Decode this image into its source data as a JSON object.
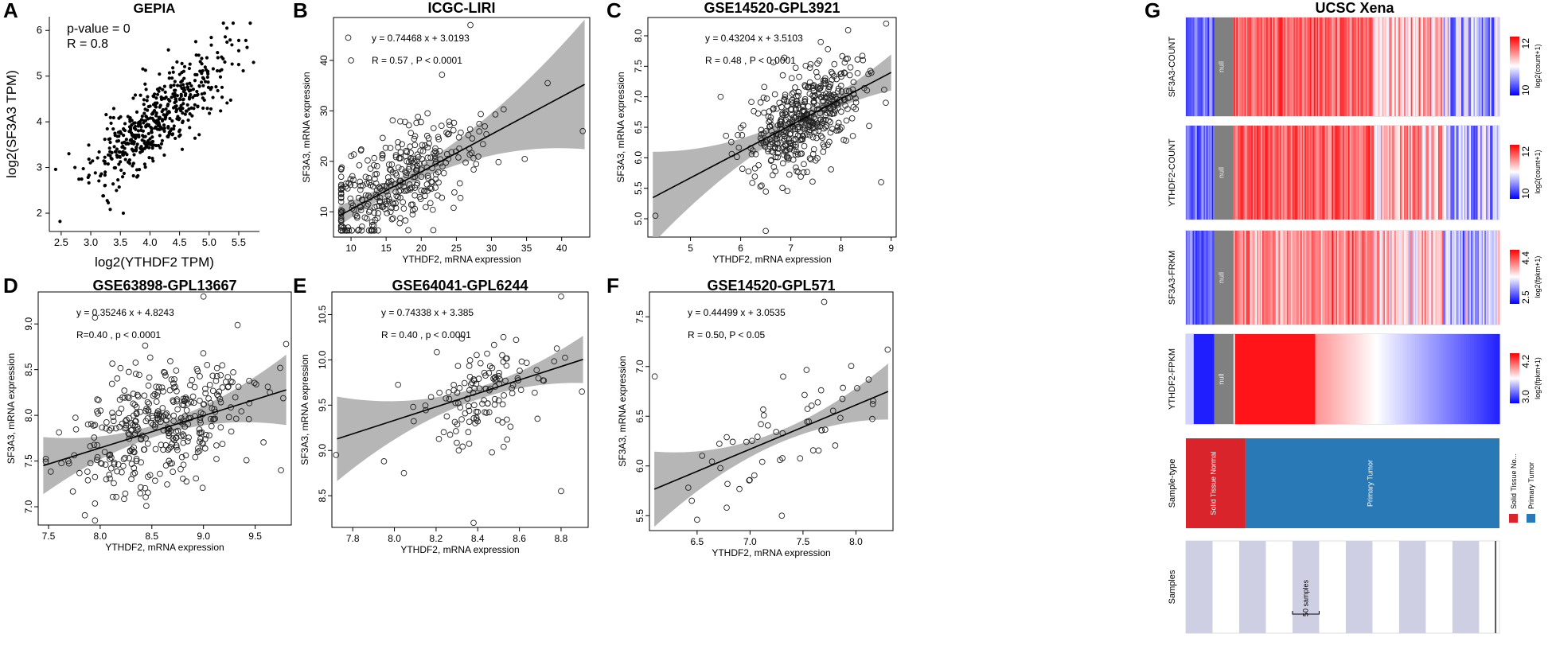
{
  "figure": {
    "panel_letters": [
      "A",
      "B",
      "C",
      "D",
      "E",
      "F",
      "G"
    ]
  },
  "colors": {
    "point": "#000000",
    "band": "#a9a9a9",
    "null_gray": "#808080",
    "normal_red": "#d9242b",
    "tumor_blue": "#2a79b7",
    "heat_red": "#e8151b",
    "heat_blue": "#1f1fd0",
    "sample_band": "#cfcfe3"
  },
  "chart_data": [
    {
      "panel": "A",
      "type": "scatter",
      "title": "GEPIA",
      "xlabel": "log2(YTHDF2 TPM)",
      "ylabel": "log2(SF3A3 TPM)",
      "xlim": [
        2.3,
        5.85
      ],
      "ylim": [
        1.6,
        6.3
      ],
      "xticks": [
        "2.5",
        "3.0",
        "3.5",
        "4.0",
        "4.5",
        "5.0",
        "5.5"
      ],
      "yticks": [
        "2",
        "3",
        "4",
        "5",
        "6"
      ],
      "annotations": [
        "p-value = 0",
        "R = 0.8"
      ],
      "fit": {
        "slope": 1.0,
        "intercept": -0.05
      },
      "band": false,
      "n_points": 520,
      "x_mean": 4.1,
      "x_sd": 0.55,
      "resid_sd": 0.42,
      "seed": 11,
      "marker": "dot",
      "points": [
        [
          2.48,
          1.82
        ],
        [
          5.3,
          6.05
        ],
        [
          5.75,
          5.3
        ],
        [
          5.5,
          5.78
        ],
        [
          5.62,
          5.78
        ],
        [
          3.55,
          2.0
        ]
      ]
    },
    {
      "panel": "B",
      "type": "scatter",
      "title": "ICGC-LIRI",
      "xlabel": "YTHDF2, mRNA expression",
      "ylabel": "SF3A3, mRNA expression",
      "xlim": [
        7.5,
        44
      ],
      "ylim": [
        5,
        48.5
      ],
      "xticks": [
        "10",
        "15",
        "20",
        "25",
        "30",
        "35",
        "40"
      ],
      "yticks": [
        "10",
        "20",
        "30",
        "40"
      ],
      "annotations": [
        "y = 0.74468 x + 3.0193",
        "R = 0.57 , P < 0.0001"
      ],
      "fit": {
        "slope": 0.74468,
        "intercept": 3.0193
      },
      "band": true,
      "n_points": 360,
      "x_mean": 16,
      "x_sd": 5.5,
      "resid_sd": 5.2,
      "seed": 23,
      "marker": "circle",
      "points": [
        [
          27,
          47
        ],
        [
          9.6,
          44.5
        ],
        [
          10,
          40
        ],
        [
          43,
          26
        ],
        [
          38,
          35.5
        ]
      ]
    },
    {
      "panel": "C",
      "type": "scatter",
      "title": "GSE14520-GPL3921",
      "xlabel": "YTHDF2, mRNA expression",
      "ylabel": "SF3A3, mRNA expression",
      "xlim": [
        4.15,
        9.1
      ],
      "ylim": [
        4.7,
        8.3
      ],
      "xticks": [
        "5",
        "6",
        "7",
        "8",
        "9"
      ],
      "yticks": [
        "5.0",
        "5.5",
        "6.0",
        "6.5",
        "7.0",
        "7.5",
        "8.0"
      ],
      "annotations": [
        "y = 0.43204 x + 3.5103",
        "R = 0.48 , P < 0.0001"
      ],
      "fit": {
        "slope": 0.43204,
        "intercept": 3.5103
      },
      "band": true,
      "n_points": 460,
      "x_mean": 7.3,
      "x_sd": 0.55,
      "resid_sd": 0.38,
      "seed": 37,
      "marker": "circle",
      "points": [
        [
          8.9,
          8.2
        ],
        [
          4.3,
          5.05
        ],
        [
          8.8,
          5.6
        ],
        [
          6.5,
          4.8
        ],
        [
          5.6,
          7.0
        ]
      ]
    },
    {
      "panel": "D",
      "type": "scatter",
      "title": "GSE63898-GPL13667",
      "xlabel": "YTHDF2, mRNA expression",
      "ylabel": "SF3A3, mRNA expression",
      "xlim": [
        7.4,
        9.85
      ],
      "ylim": [
        6.8,
        9.35
      ],
      "xticks": [
        "7.5",
        "8.0",
        "8.5",
        "9.0",
        "9.5"
      ],
      "yticks": [
        "7.0",
        "7.5",
        "8.0",
        "8.5",
        "9.0"
      ],
      "annotations": [
        "y = 0.35246 x + 4.8243",
        "R=0.40 ,  p < 0.0001"
      ],
      "fit": {
        "slope": 0.35246,
        "intercept": 4.8243
      },
      "band": true,
      "n_points": 370,
      "x_mean": 8.55,
      "x_sd": 0.42,
      "resid_sd": 0.33,
      "seed": 51,
      "marker": "circle",
      "points": [
        [
          9.0,
          9.3
        ],
        [
          7.95,
          9.07
        ],
        [
          7.95,
          6.85
        ],
        [
          9.75,
          7.4
        ],
        [
          9.8,
          8.78
        ]
      ]
    },
    {
      "panel": "E",
      "type": "scatter",
      "title": "GSE64041-GPL6244",
      "xlabel": "YTHDF2, mRNA expression",
      "ylabel": "SF3A3, mRNA expression",
      "xlim": [
        7.7,
        8.93
      ],
      "ylim": [
        8.15,
        10.75
      ],
      "xticks": [
        "7.8",
        "8.0",
        "8.2",
        "8.4",
        "8.6",
        "8.8"
      ],
      "yticks": [
        "8.5",
        "9.0",
        "9.5",
        "10.0",
        "10.5"
      ],
      "annotations": [
        "y = 0.74338 x + 3.385",
        "R = 0.40 ,  p < 0.0001"
      ],
      "fit": {
        "slope": 0.74338,
        "intercept": 3.385
      },
      "band": true,
      "n_points": 130,
      "x_mean": 8.42,
      "x_sd": 0.15,
      "resid_sd": 0.26,
      "seed": 67,
      "marker": "circle",
      "points": [
        [
          8.8,
          10.7
        ],
        [
          7.72,
          8.95
        ],
        [
          8.38,
          8.2
        ],
        [
          8.8,
          8.55
        ],
        [
          7.95,
          8.88
        ],
        [
          8.9,
          9.65
        ]
      ]
    },
    {
      "panel": "F",
      "type": "scatter",
      "title": "GSE14520-GPL571",
      "xlabel": "YTHDF2, mRNA expression",
      "ylabel": "SF3A3, mRNA expression",
      "xlim": [
        6.05,
        8.35
      ],
      "ylim": [
        5.35,
        7.75
      ],
      "xticks": [
        "6.5",
        "7.0",
        "7.5",
        "8.0"
      ],
      "yticks": [
        "5.5",
        "6.0",
        "6.5",
        "7.0",
        "7.5"
      ],
      "annotations": [
        "y = 0.44499 x + 3.0535",
        "R = 0.50, P < 0.05"
      ],
      "fit": {
        "slope": 0.44499,
        "intercept": 3.0535
      },
      "band": true,
      "n_points": 52,
      "x_mean": 7.3,
      "x_sd": 0.42,
      "resid_sd": 0.26,
      "seed": 83,
      "marker": "circle",
      "points": [
        [
          7.7,
          7.65
        ],
        [
          6.1,
          6.9
        ],
        [
          8.3,
          7.17
        ],
        [
          7.3,
          5.5
        ],
        [
          6.45,
          5.65
        ]
      ]
    },
    {
      "panel": "G",
      "type": "heatmap",
      "title": "UCSC Xena",
      "rows": [
        {
          "label": "SF3A3-COUNT",
          "legend_max": "12",
          "legend_min": "10",
          "legend_unit": "log2(count+1)",
          "style": "stripes"
        },
        {
          "label": "YTHDF2-COUNT",
          "legend_max": "12",
          "legend_min": "10",
          "legend_unit": "log2(count+1)",
          "style": "stripes"
        },
        {
          "label": "SF3A3-FRKM",
          "legend_max": "4.4",
          "legend_min": "2.5",
          "legend_unit": "log2(fpkm+1)",
          "style": "stripes"
        },
        {
          "label": "YTHDF2-FPKM",
          "legend_max": "4.2",
          "legend_min": "3.0",
          "legend_unit": "log2(fpkm+1)",
          "style": "gradient"
        }
      ],
      "null_label": "null",
      "sample_type": {
        "label": "Sample-type",
        "categories": [
          "Solid Tissue Normal",
          "Primary Tumor"
        ],
        "legend": [
          "Solid Tissue No...",
          "Primary Tumor"
        ],
        "normal_fraction": 0.19
      },
      "samples": {
        "label": "Samples",
        "scale_label": "50 samples"
      }
    }
  ]
}
